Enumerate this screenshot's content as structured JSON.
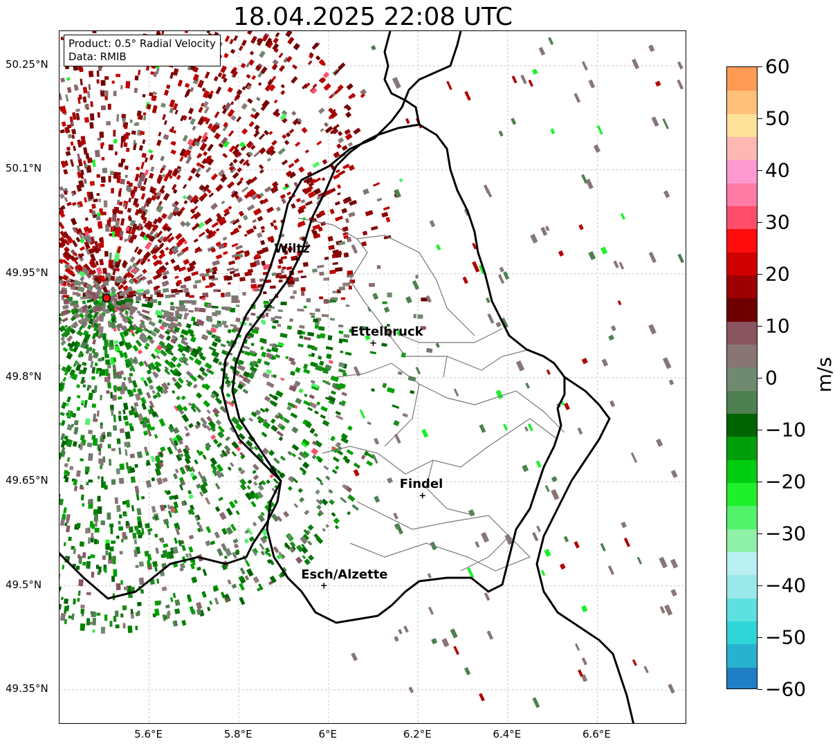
{
  "title": "18.04.2025 22:08 UTC",
  "info_box": {
    "product": "Product: 0.5° Radial Velocity",
    "data": "Data: RMIB"
  },
  "cities": [
    {
      "name": "Wiltz",
      "lon": 5.93,
      "lat": 49.97
    },
    {
      "name": "Ettelbruck",
      "lon": 6.1,
      "lat": 49.85
    },
    {
      "name": "Findel",
      "lon": 6.21,
      "lat": 49.63
    },
    {
      "name": "Esch/Alzette",
      "lon": 5.99,
      "lat": 49.5
    }
  ],
  "radar_site": {
    "lon": 5.505,
    "lat": 49.915
  },
  "map_extent": {
    "lon": [
      5.4,
      6.8
    ],
    "lat": [
      49.3,
      50.3
    ]
  },
  "lat_ticks": [
    "50.25°N",
    "50.1°N",
    "49.95°N",
    "49.8°N",
    "49.65°N",
    "49.5°N",
    "49.35°N"
  ],
  "lat_tick_values": [
    50.25,
    50.1,
    49.95,
    49.8,
    49.65,
    49.5,
    49.35
  ],
  "lon_ticks": [
    "5.6°E",
    "5.8°E",
    "6°E",
    "6.2°E",
    "6.4°E",
    "6.6°E"
  ],
  "lon_tick_values": [
    5.6,
    5.8,
    6.0,
    6.2,
    6.4,
    6.6
  ],
  "colorbar": {
    "unit": "m/s",
    "range": [
      -60,
      60
    ],
    "ticks": [
      "60",
      "50",
      "40",
      "30",
      "20",
      "10",
      "0",
      "−10",
      "−20",
      "−30",
      "−40",
      "−50",
      "−60"
    ],
    "tick_values": [
      60,
      50,
      40,
      30,
      20,
      10,
      0,
      -10,
      -20,
      -30,
      -40,
      -50,
      -60
    ],
    "colors": [
      "#1f7fc4",
      "#27b3cf",
      "#2fd6d9",
      "#5fe0e0",
      "#9ae9ea",
      "#b9eff1",
      "#8ff0a8",
      "#52f26a",
      "#1ef02c",
      "#00cc10",
      "#009e0a",
      "#006400",
      "#4e8050",
      "#6f8a70",
      "#887575",
      "#8a5560",
      "#6e0000",
      "#9c0000",
      "#d00000",
      "#ff0d0d",
      "#ff4d6a",
      "#ff7aa5",
      "#ff9ad0",
      "#ffb7b4",
      "#ffe29a",
      "#ffc07a",
      "#ff9a55"
    ]
  }
}
